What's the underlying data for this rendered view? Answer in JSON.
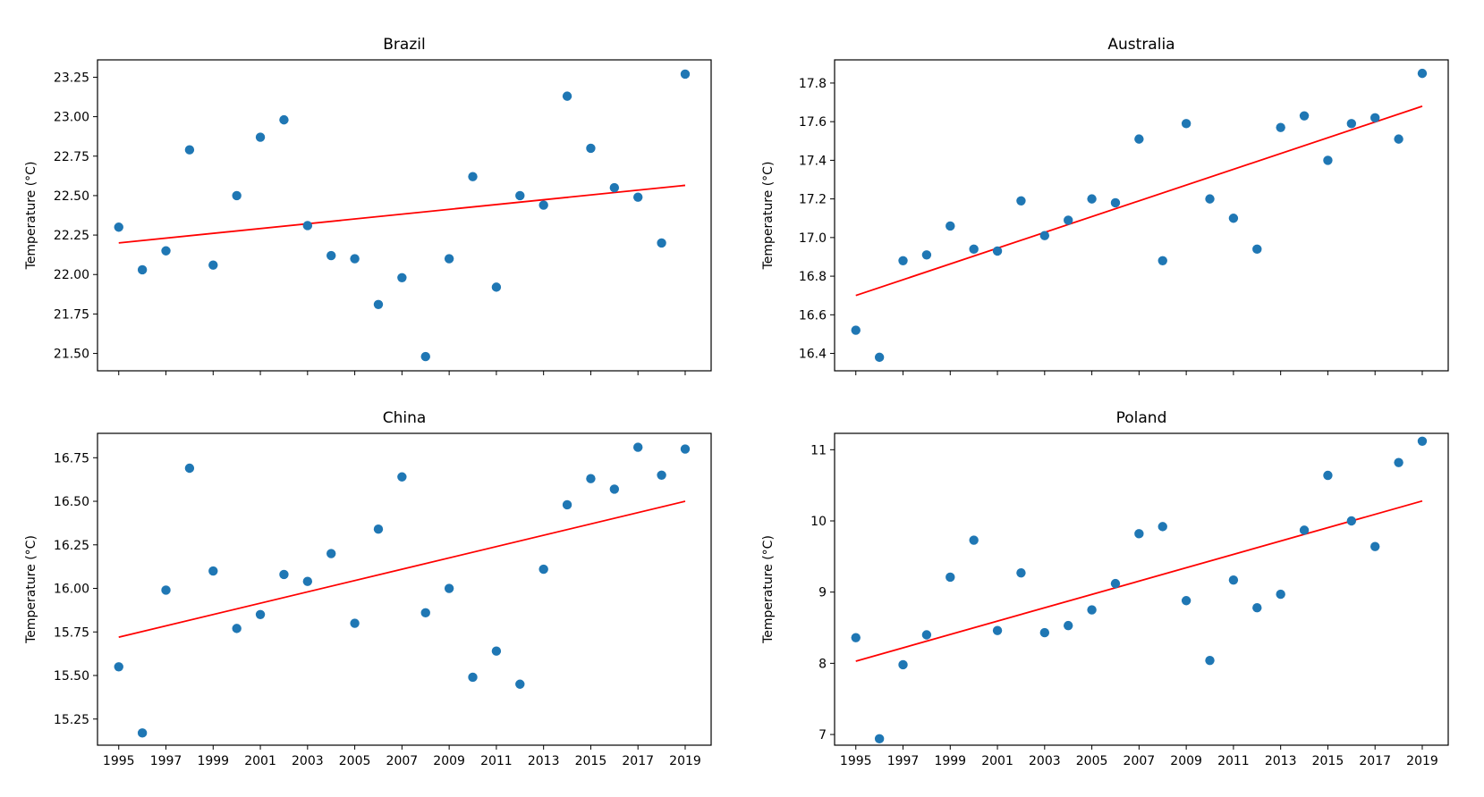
{
  "chart_data": [
    {
      "type": "scatter",
      "title": "Brazil",
      "ylabel": "Temperature ($^\\circ$C)",
      "ylabel_display": "Temperature (°C)",
      "x": [
        1995,
        1996,
        1997,
        1998,
        1999,
        2000,
        2001,
        2002,
        2003,
        2004,
        2005,
        2006,
        2007,
        2008,
        2009,
        2010,
        2011,
        2012,
        2013,
        2014,
        2015,
        2016,
        2017,
        2018,
        2019
      ],
      "y": [
        22.3,
        22.03,
        22.15,
        22.79,
        22.06,
        22.5,
        22.87,
        22.98,
        22.31,
        22.12,
        22.1,
        21.81,
        21.98,
        21.48,
        22.1,
        22.62,
        21.92,
        22.5,
        22.44,
        23.13,
        22.8,
        22.55,
        22.49,
        22.2,
        23.27
      ],
      "trend": {
        "x": [
          1995,
          2019
        ],
        "y": [
          22.2,
          22.565
        ]
      },
      "xlim": [
        1994.1,
        2020.1
      ],
      "ylim": [
        21.39,
        23.36
      ],
      "yticks": [
        21.5,
        21.75,
        22.0,
        22.25,
        22.5,
        22.75,
        23.0,
        23.25
      ],
      "ytick_labels": [
        "21.50",
        "21.75",
        "22.00",
        "22.25",
        "22.50",
        "22.75",
        "23.00",
        "23.25"
      ]
    },
    {
      "type": "scatter",
      "title": "Australia",
      "ylabel": "Temperature ($^\\circ$C)",
      "ylabel_display": "Temperature (°C)",
      "x": [
        1995,
        1996,
        1997,
        1998,
        1999,
        2000,
        2001,
        2002,
        2003,
        2004,
        2005,
        2006,
        2007,
        2008,
        2009,
        2010,
        2011,
        2012,
        2013,
        2014,
        2015,
        2016,
        2017,
        2018,
        2019
      ],
      "y": [
        16.52,
        16.38,
        16.88,
        16.91,
        17.06,
        16.94,
        16.93,
        17.19,
        17.01,
        17.09,
        17.2,
        17.18,
        17.51,
        16.88,
        17.59,
        17.2,
        17.1,
        16.94,
        17.57,
        17.63,
        17.4,
        17.59,
        17.62,
        17.51,
        17.85
      ],
      "trend": {
        "x": [
          1995,
          2019
        ],
        "y": [
          16.7,
          17.68
        ]
      },
      "xlim": [
        1994.1,
        2020.1
      ],
      "ylim": [
        16.31,
        17.92
      ],
      "yticks": [
        16.4,
        16.6,
        16.8,
        17.0,
        17.2,
        17.4,
        17.6,
        17.8
      ],
      "ytick_labels": [
        "16.4",
        "16.6",
        "16.8",
        "17.0",
        "17.2",
        "17.4",
        "17.6",
        "17.8"
      ]
    },
    {
      "type": "scatter",
      "title": "China",
      "ylabel": "Temperature ($^\\circ$C)",
      "ylabel_display": "Temperature (°C)",
      "x": [
        1995,
        1996,
        1997,
        1998,
        1999,
        2000,
        2001,
        2002,
        2003,
        2004,
        2005,
        2006,
        2007,
        2008,
        2009,
        2010,
        2011,
        2012,
        2013,
        2014,
        2015,
        2016,
        2017,
        2018,
        2019
      ],
      "y": [
        15.55,
        15.17,
        15.99,
        16.69,
        16.1,
        15.77,
        15.85,
        16.08,
        16.04,
        16.2,
        15.8,
        16.34,
        16.64,
        15.86,
        16.0,
        15.49,
        15.64,
        15.45,
        16.11,
        16.48,
        16.63,
        16.57,
        16.81,
        16.65,
        16.8
      ],
      "trend": {
        "x": [
          1995,
          2019
        ],
        "y": [
          15.72,
          16.5
        ]
      },
      "xlim": [
        1994.1,
        2020.1
      ],
      "ylim": [
        15.1,
        16.89
      ],
      "yticks": [
        15.25,
        15.5,
        15.75,
        16.0,
        16.25,
        16.5,
        16.75
      ],
      "ytick_labels": [
        "15.25",
        "15.50",
        "15.75",
        "16.00",
        "16.25",
        "16.50",
        "16.75"
      ],
      "xticks": [
        1995,
        1997,
        1999,
        2001,
        2003,
        2005,
        2007,
        2009,
        2011,
        2013,
        2015,
        2017,
        2019
      ],
      "xtick_labels": [
        "1995",
        "1997",
        "1999",
        "2001",
        "2003",
        "2005",
        "2007",
        "2009",
        "2011",
        "2013",
        "2015",
        "2017",
        "2019"
      ]
    },
    {
      "type": "scatter",
      "title": "Poland",
      "ylabel": "Temperature ($^\\circ$C)",
      "ylabel_display": "Temperature (°C)",
      "x": [
        1995,
        1996,
        1997,
        1998,
        1999,
        2000,
        2001,
        2002,
        2003,
        2004,
        2005,
        2006,
        2007,
        2008,
        2009,
        2010,
        2011,
        2012,
        2013,
        2014,
        2015,
        2016,
        2017,
        2018,
        2019
      ],
      "y": [
        8.36,
        6.94,
        7.98,
        8.4,
        9.21,
        9.73,
        8.46,
        9.27,
        8.43,
        8.53,
        8.75,
        9.12,
        9.82,
        9.92,
        8.88,
        8.04,
        9.17,
        8.78,
        8.97,
        9.87,
        10.64,
        10.0,
        9.64,
        10.82,
        11.12
      ],
      "trend": {
        "x": [
          1995,
          2019
        ],
        "y": [
          8.03,
          10.28
        ]
      },
      "xlim": [
        1994.1,
        2020.1
      ],
      "ylim": [
        6.85,
        11.23
      ],
      "yticks": [
        7,
        8,
        9,
        10,
        11
      ],
      "ytick_labels": [
        "7",
        "8",
        "9",
        "10",
        "11"
      ],
      "xticks": [
        1995,
        1997,
        1999,
        2001,
        2003,
        2005,
        2007,
        2009,
        2011,
        2013,
        2015,
        2017,
        2019
      ],
      "xtick_labels": [
        "1995",
        "1997",
        "1999",
        "2001",
        "2003",
        "2005",
        "2007",
        "2009",
        "2011",
        "2013",
        "2015",
        "2017",
        "2019"
      ]
    }
  ],
  "colors": {
    "points": "#1f77b4",
    "trend": "#ff0000",
    "axes": "#000000"
  }
}
